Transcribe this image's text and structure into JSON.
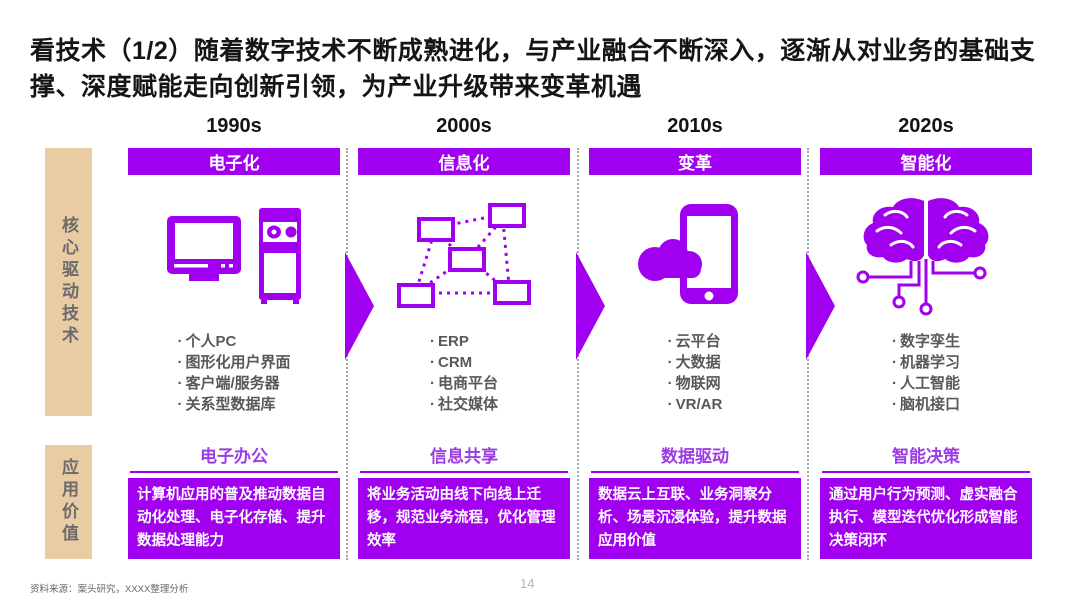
{
  "title": "看技术（1/2）随着数字技术不断成熟进化，与产业融合不断深入，逐渐从对业务的基础支撑、深度赋能走向创新引领，为产业升级带来变革机遇",
  "rows": {
    "core_tech_label": "核心驱动技术",
    "app_value_label": "应用价值"
  },
  "columns": [
    {
      "era": "1990s",
      "banner": "电子化",
      "icon": "desktop-computer-icon",
      "bullets": [
        "个人PC",
        "图形化用户界面",
        "客户端/服务器",
        "关系型数据库"
      ],
      "value_label": "电子办公",
      "value_desc": "计算机应用的普及推动数据自动化处理、电子化存储、提升数据处理能力"
    },
    {
      "era": "2000s",
      "banner": "信息化",
      "icon": "network-nodes-icon",
      "bullets": [
        "ERP",
        "CRM",
        "电商平台",
        "社交媒体"
      ],
      "value_label": "信息共享",
      "value_desc": "将业务活动由线下向线上迁移，规范业务流程，优化管理效率"
    },
    {
      "era": "2010s",
      "banner": "变革",
      "icon": "cloud-smartphone-icon",
      "bullets": [
        "云平台",
        "大数据",
        "物联网",
        "VR/AR"
      ],
      "value_label": "数据驱动",
      "value_desc": "数据云上互联、业务洞察分析、场景沉浸体验，提升数据应用价值"
    },
    {
      "era": "2020s",
      "banner": "智能化",
      "icon": "brain-circuit-icon",
      "bullets": [
        "数字孪生",
        "机器学习",
        "人工智能",
        "脑机接口"
      ],
      "value_label": "智能决策",
      "value_desc": "通过用户行为预测、虚实融合执行、模型迭代优化形成智能决策闭环"
    }
  ],
  "footer": {
    "source": "资料来源：案头研究，XXXX整理分析",
    "page_number": "14"
  },
  "colors": {
    "accent_purple": "#A100F0",
    "value_label_purple": "#9C3DE3",
    "sidebar_tan": "#EACCA4",
    "bullet_gray": "#595959"
  }
}
